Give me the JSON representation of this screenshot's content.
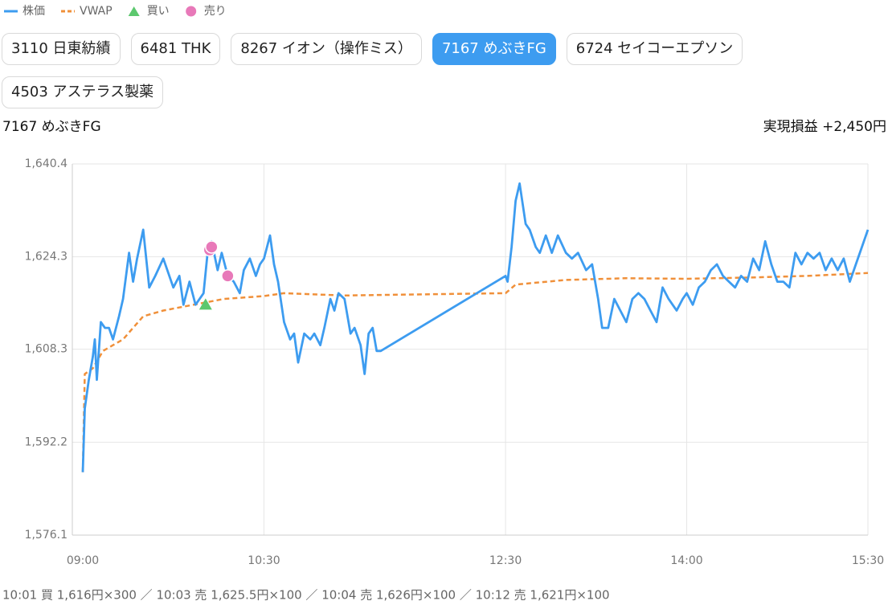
{
  "tabs": [
    {
      "label": "3110 日東紡績"
    },
    {
      "label": "6481 THK"
    },
    {
      "label": "8267 イオン（操作ミス）"
    },
    {
      "label": "7167 めぶきFG",
      "active": true
    },
    {
      "label": "6724 セイコーエプソン"
    },
    {
      "label": "4503 アステラス製薬"
    }
  ],
  "chart_data": {
    "type": "line",
    "title": "7167 めぶきFG",
    "annotation": "実現損益 +2,450円",
    "xlim": [
      "09:00",
      "15:30"
    ],
    "xticks": [
      "09:00",
      "10:30",
      "12:30",
      "14:00",
      "15:30"
    ],
    "ylim": [
      1576.1,
      1640.4
    ],
    "yticks": [
      {
        "value": 1576.1,
        "label": "1,576.1"
      },
      {
        "value": 1592.2,
        "label": "1,592.2"
      },
      {
        "value": 1608.3,
        "label": "1,608.3"
      },
      {
        "value": 1624.3,
        "label": "1,624.3"
      },
      {
        "value": 1640.4,
        "label": "1,640.4"
      }
    ],
    "grid": true,
    "series": [
      {
        "name": "株価",
        "color": "#3d9cf0",
        "style": "solid",
        "x": [
          "09:00",
          "09:01",
          "09:03",
          "09:05",
          "09:06",
          "09:07",
          "09:09",
          "09:11",
          "09:13",
          "09:15",
          "09:18",
          "09:20",
          "09:23",
          "09:25",
          "09:27",
          "09:30",
          "09:33",
          "09:36",
          "09:40",
          "09:42",
          "09:45",
          "09:48",
          "09:50",
          "09:53",
          "09:56",
          "10:00",
          "10:02",
          "10:04",
          "10:07",
          "10:09",
          "10:12",
          "10:15",
          "10:18",
          "10:20",
          "10:23",
          "10:26",
          "10:28",
          "10:30",
          "10:33",
          "10:35",
          "10:37",
          "10:40",
          "10:43",
          "10:45",
          "10:47",
          "10:50",
          "10:53",
          "10:55",
          "10:58",
          "11:00",
          "11:03",
          "11:05",
          "11:07",
          "11:10",
          "11:13",
          "11:15",
          "11:18",
          "11:20",
          "11:22",
          "11:24",
          "11:26",
          "11:28",
          "12:30",
          "12:31",
          "12:33",
          "12:35",
          "12:37",
          "12:40",
          "12:42",
          "12:45",
          "12:47",
          "12:50",
          "12:53",
          "12:56",
          "13:00",
          "13:03",
          "13:06",
          "13:10",
          "13:13",
          "13:16",
          "13:18",
          "13:21",
          "13:24",
          "13:27",
          "13:30",
          "13:33",
          "13:36",
          "13:39",
          "13:42",
          "13:45",
          "13:48",
          "13:51",
          "13:55",
          "13:58",
          "14:00",
          "14:03",
          "14:06",
          "14:09",
          "14:12",
          "14:15",
          "14:18",
          "14:21",
          "14:24",
          "14:27",
          "14:30",
          "14:33",
          "14:36",
          "14:39",
          "14:42",
          "14:45",
          "14:48",
          "14:51",
          "14:54",
          "14:57",
          "15:00",
          "15:03",
          "15:06",
          "15:09",
          "15:12",
          "15:15",
          "15:18",
          "15:21",
          "15:24",
          "15:27",
          "15:30"
        ],
        "values": [
          1587,
          1598,
          1603,
          1607,
          1610,
          1603,
          1613,
          1612,
          1612,
          1610,
          1614,
          1617,
          1625,
          1620,
          1624,
          1629,
          1619,
          1621,
          1624,
          1622,
          1619,
          1621,
          1616,
          1620,
          1616,
          1618,
          1625,
          1627,
          1622,
          1625,
          1621,
          1620,
          1618,
          1622,
          1624,
          1621,
          1623,
          1624,
          1628,
          1623,
          1620,
          1613,
          1610,
          1611,
          1606,
          1611,
          1610,
          1611,
          1609,
          1612,
          1617,
          1615,
          1618,
          1617,
          1611,
          1612,
          1609,
          1604,
          1611,
          1612,
          1608,
          1608,
          1621,
          1620,
          1626,
          1634,
          1637,
          1630,
          1629,
          1626,
          1625,
          1628,
          1625,
          1628,
          1625,
          1624,
          1625,
          1622,
          1623,
          1617,
          1612,
          1612,
          1617,
          1615,
          1613,
          1617,
          1618,
          1617,
          1615,
          1613,
          1619,
          1617,
          1615,
          1617,
          1618,
          1616,
          1619,
          1620,
          1622,
          1623,
          1621,
          1620,
          1619,
          1621,
          1620,
          1624,
          1622,
          1627,
          1623,
          1620,
          1620,
          1619,
          1625,
          1623,
          1625,
          1624,
          1625,
          1622,
          1624,
          1622,
          1624,
          1620,
          1623,
          1626,
          1629
        ]
      },
      {
        "name": "VWAP",
        "color": "#f0903a",
        "style": "dashed",
        "x": [
          "09:00",
          "09:01",
          "09:05",
          "09:10",
          "09:15",
          "09:20",
          "09:25",
          "09:30",
          "09:40",
          "09:55",
          "10:10",
          "10:30",
          "10:40",
          "10:55",
          "11:10",
          "11:28",
          "12:30",
          "12:35",
          "13:00",
          "13:30",
          "14:00",
          "14:30",
          "15:00",
          "15:30"
        ],
        "values": [
          1587,
          1604,
          1605,
          1608,
          1609,
          1610,
          1612,
          1614,
          1615,
          1616,
          1617,
          1617.5,
          1618,
          1617.8,
          1617.6,
          1617.7,
          1618,
          1619.5,
          1620.3,
          1620.6,
          1620.5,
          1620.7,
          1621,
          1621.5
        ]
      },
      {
        "name": "買い",
        "color": "#5cc86e",
        "marker": "triangle",
        "x": [
          "10:01"
        ],
        "values": [
          1616
        ]
      },
      {
        "name": "売り",
        "color": "#e879b9",
        "marker": "circle",
        "x": [
          "10:03",
          "10:04",
          "10:12"
        ],
        "values": [
          1625.5,
          1626,
          1621
        ]
      }
    ],
    "footer": "10:01 買 1,616円×300 ／ 10:03 売 1,625.5円×100 ／ 10:04 売 1,626円×100 ／ 10:12 売 1,621円×100"
  }
}
